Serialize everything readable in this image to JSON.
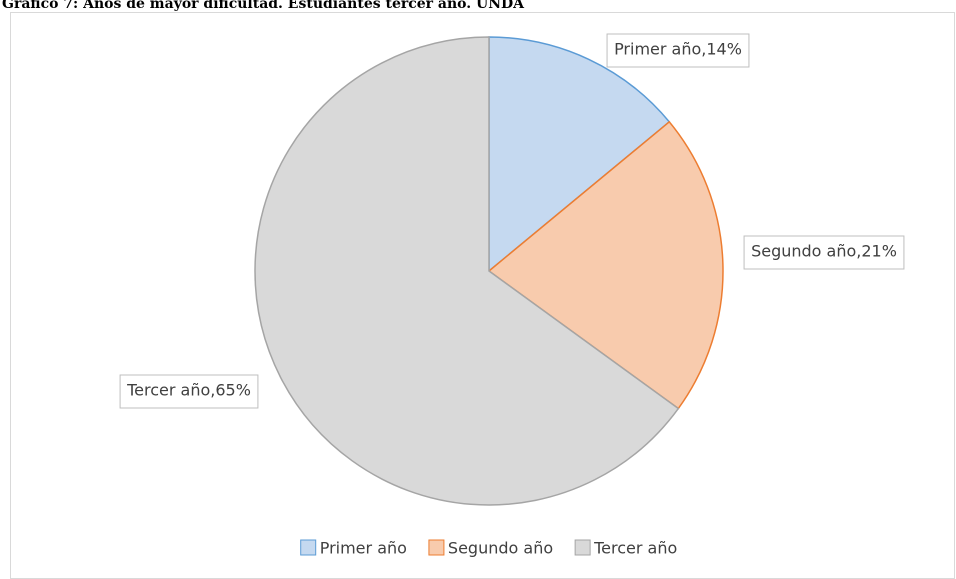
{
  "chart_data": {
    "type": "pie",
    "title": "Gráfico 7: Años de mayor dificultad. Estudiantes tercer año. UNDA",
    "categories": [
      "Primer año",
      "Segundo año",
      "Tercer año"
    ],
    "values": [
      14,
      21,
      65
    ],
    "value_labels": [
      "Primer año,14%",
      "Segundo año,21%",
      "Tercer año,65%"
    ],
    "colors": [
      "#c5d9f0",
      "#f8cbad",
      "#d9d9d9"
    ],
    "edge_colors": [
      "#5b9bd5",
      "#ed7d31",
      "#a5a5a5"
    ],
    "legend": "bottom"
  }
}
